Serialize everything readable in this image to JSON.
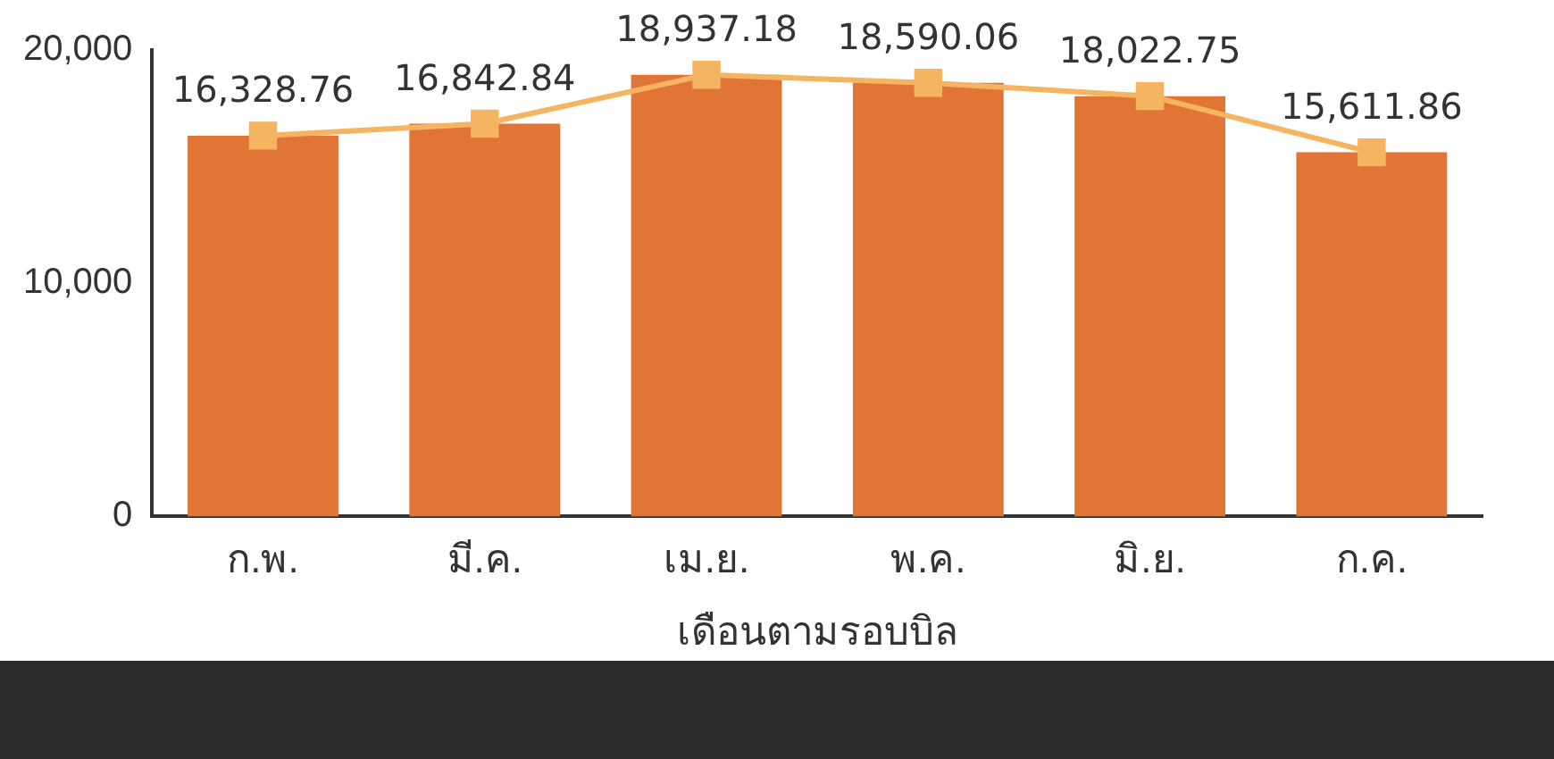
{
  "chart_data": {
    "type": "bar",
    "xlabel": "เดือนตามรอบบิล",
    "categories": [
      "ก.พ.",
      "มี.ค.",
      "เม.ย.",
      "พ.ค.",
      "มิ.ย.",
      "ก.ค."
    ],
    "series": [
      {
        "color": "#e07535",
        "values": [
          16328.76,
          16842.84,
          18937.18,
          18590.06,
          18022.75,
          15611.86
        ]
      },
      {
        "type": "line",
        "color": "#f5b461",
        "marker": "square",
        "values": [
          16328.76,
          16842.84,
          18937.18,
          18590.06,
          18022.75,
          15611.86
        ],
        "value_labels": [
          "16,328.76",
          "16,842.84",
          "18,937.18",
          "18,590.06",
          "18,022.75",
          "15,611.86"
        ]
      }
    ],
    "ylim": [
      0,
      20000
    ],
    "yticks": [
      {
        "value": 0,
        "label": "0"
      },
      {
        "value": 10000,
        "label": "10,000"
      },
      {
        "value": 20000,
        "label": "20,000"
      }
    ],
    "grid": false,
    "legend": false
  }
}
